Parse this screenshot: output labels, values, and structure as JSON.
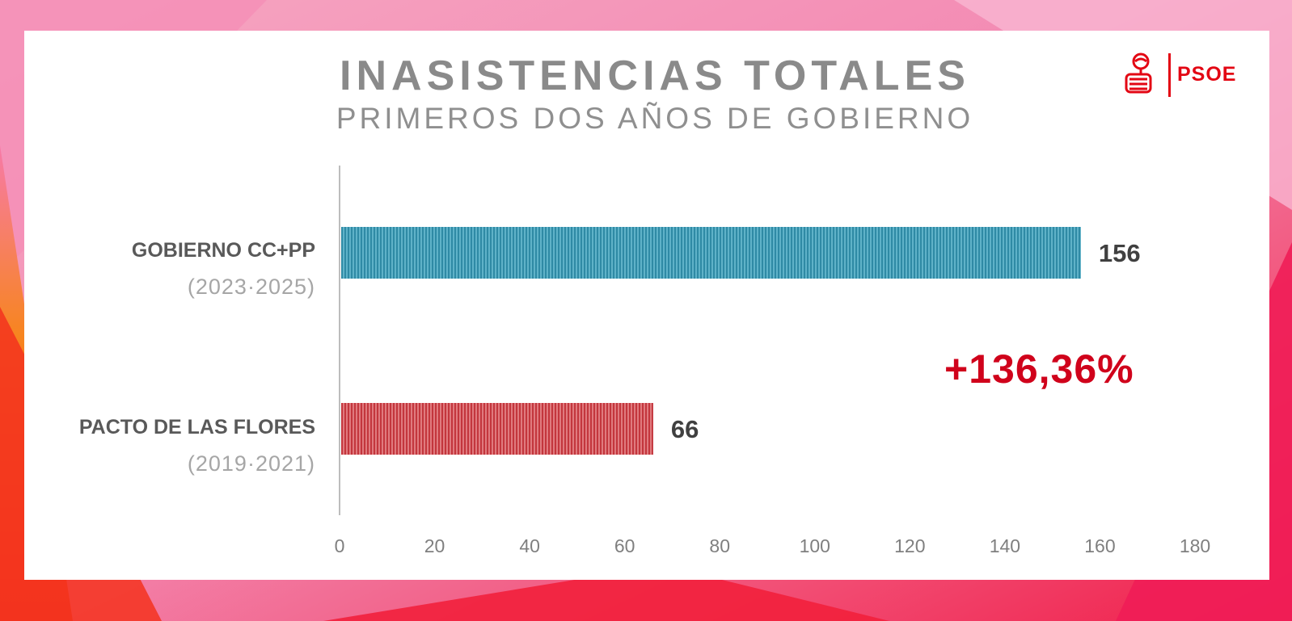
{
  "colors": {
    "bar_gobierno": "#3a97b0",
    "bar_pacto": "#c8444a",
    "annotation": "#d0021b",
    "brand": "#e30613"
  },
  "logo": {
    "text": "PSOE",
    "icon": "rose-fist-icon"
  },
  "chart_data": {
    "type": "bar",
    "orientation": "horizontal",
    "title": "INASISTENCIAS TOTALES",
    "subtitle": "PRIMEROS DOS AÑOS DE GOBIERNO",
    "categories": [
      {
        "label": "GOBIERNO CC+PP",
        "period": "(2023·2025)"
      },
      {
        "label": "PACTO DE LAS FLORES",
        "period": "(2019·2021)"
      }
    ],
    "values": [
      156,
      66
    ],
    "value_labels": [
      "156",
      "66"
    ],
    "xlim": [
      0,
      180
    ],
    "xticks": [
      "0",
      "20",
      "40",
      "60",
      "80",
      "100",
      "120",
      "140",
      "160",
      "180"
    ],
    "grid": false,
    "annotation": "+136,36%"
  }
}
